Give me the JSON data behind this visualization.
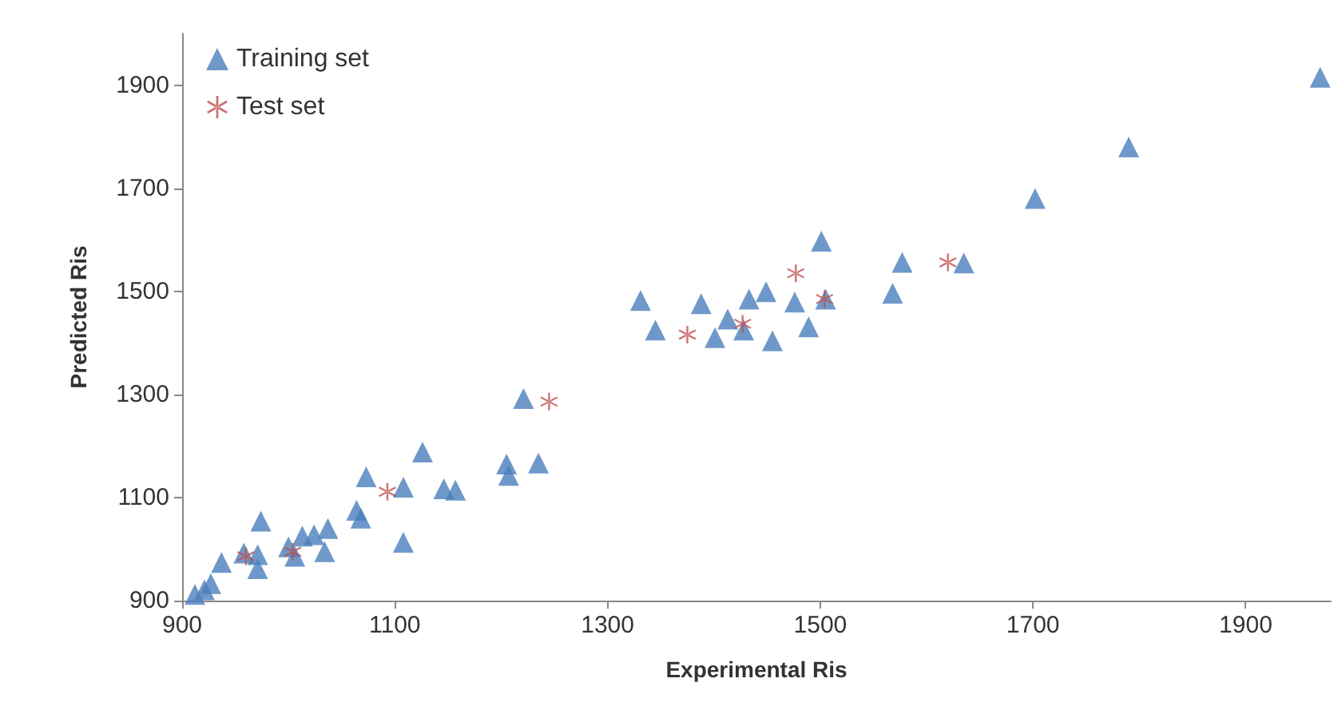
{
  "chart_data": {
    "type": "scatter",
    "xlabel": "Experimental Ris",
    "ylabel": "Predicted Ris",
    "xlim": [
      900,
      1980
    ],
    "xticks": [
      900,
      1100,
      1300,
      1500,
      1700,
      1900
    ],
    "ylim": [
      900,
      2000
    ],
    "yticks": [
      900,
      1100,
      1300,
      1500,
      1700,
      1900
    ],
    "grid": false,
    "legend": "top left",
    "series": [
      {
        "name": "Training set",
        "color": "#4a7ebb",
        "marker": "triangle",
        "x": [
          1970,
          1790,
          1702,
          1635,
          1577,
          1568,
          1501,
          1505,
          1489,
          1476,
          1455,
          1449,
          1433,
          1428,
          1413,
          1401,
          1388,
          1345,
          1331,
          1235,
          1221,
          1205,
          1207,
          1157,
          1146,
          1126,
          1108,
          1108,
          1073,
          1068,
          1064,
          1037,
          1034,
          1024,
          1013,
          1006,
          1000,
          974,
          971,
          971,
          958,
          937,
          927,
          921,
          912
        ],
        "values": [
          1915,
          1780,
          1680,
          1555,
          1556,
          1496,
          1597,
          1485,
          1431,
          1479,
          1404,
          1499,
          1485,
          1425,
          1446,
          1410,
          1476,
          1425,
          1482,
          1167,
          1292,
          1165,
          1143,
          1114,
          1117,
          1188,
          1013,
          1120,
          1140,
          1060,
          1075,
          1040,
          995,
          1028,
          1025,
          986,
          1004,
          1054,
          989,
          962,
          992,
          974,
          933,
          921,
          912
        ]
      },
      {
        "name": "Test set",
        "color": "#c0504d",
        "marker": "cross",
        "x": [
          1620,
          1504,
          1477,
          1427,
          1375,
          1245,
          1093,
          1004,
          960
        ],
        "values": [
          1556,
          1485,
          1535,
          1437,
          1416,
          1286,
          1111,
          995,
          986
        ]
      }
    ]
  }
}
